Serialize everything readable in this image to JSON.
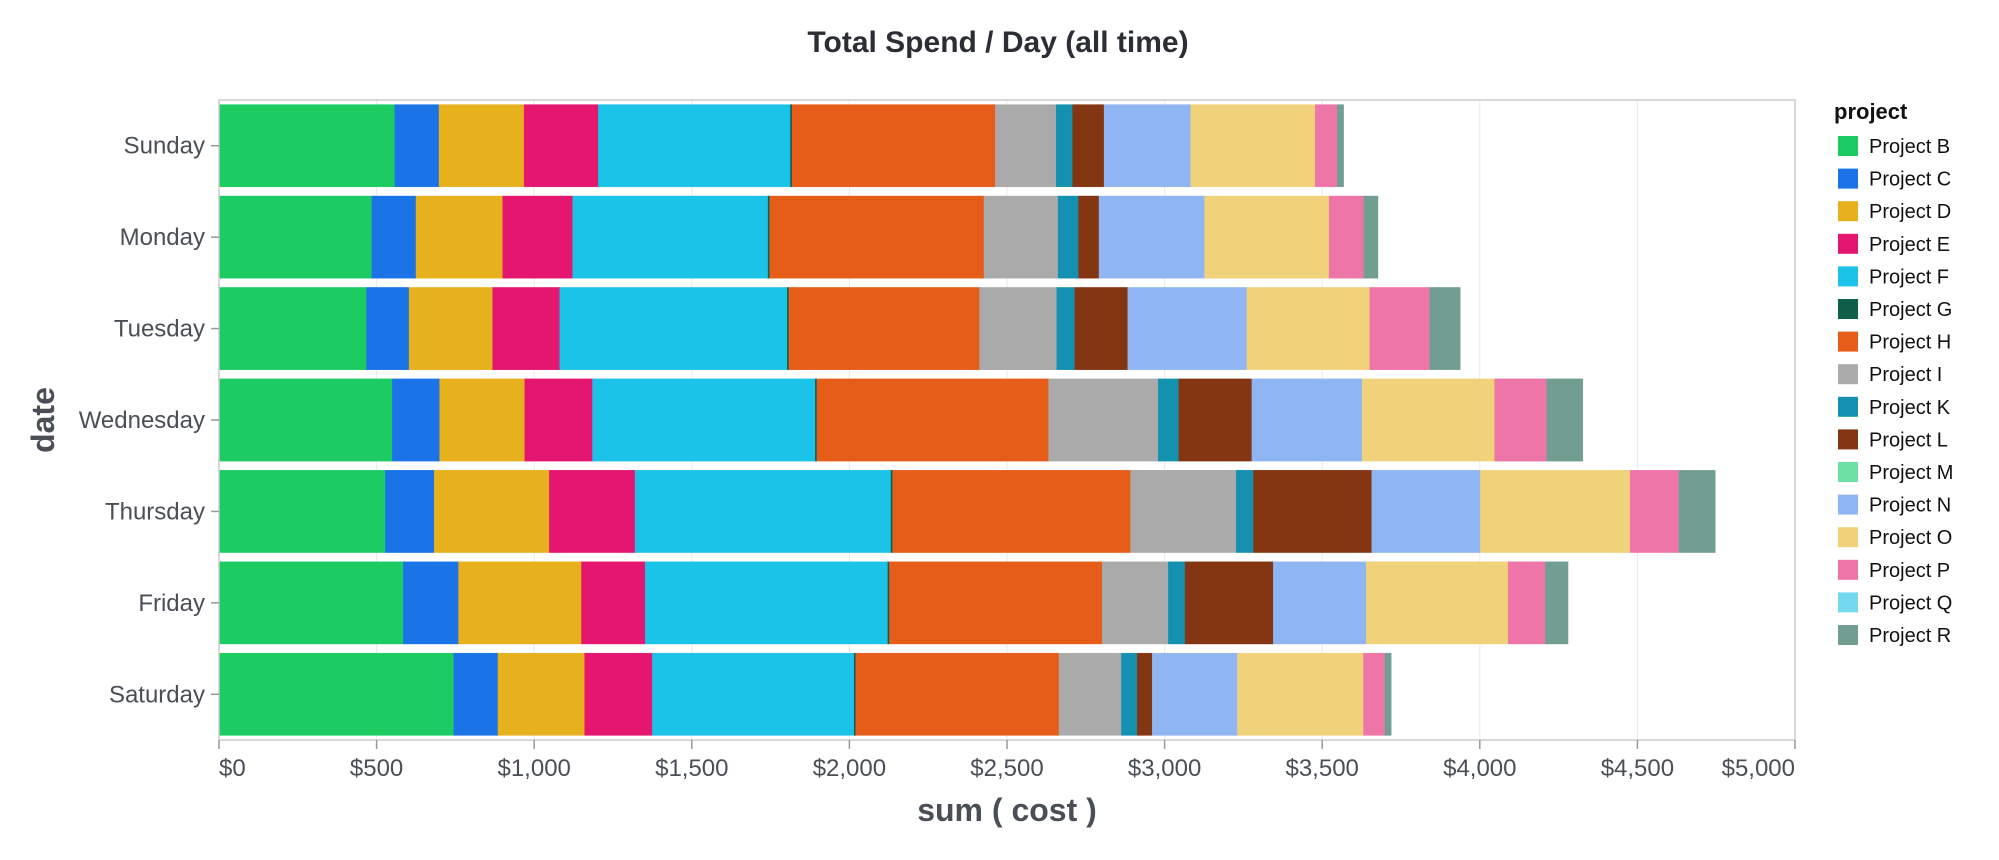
{
  "chart_data": {
    "type": "bar",
    "orientation": "horizontal",
    "stacked": true,
    "title": "Total Spend / Day (all time)",
    "xlabel": "sum ( cost )",
    "ylabel": "date",
    "xlim": [
      0,
      5000
    ],
    "x_ticks": [
      0,
      500,
      1000,
      1500,
      2000,
      2500,
      3000,
      3500,
      4000,
      4500,
      5000
    ],
    "x_tick_labels": [
      "$0",
      "$500",
      "$1,000",
      "$1,500",
      "$2,000",
      "$2,500",
      "$3,000",
      "$3,500",
      "$4,000",
      "$4,500",
      "$5,000"
    ],
    "grid": "vertical",
    "legend_title": "project",
    "legend_position": "right",
    "categories": [
      "Sunday",
      "Monday",
      "Tuesday",
      "Wednesday",
      "Thursday",
      "Friday",
      "Saturday"
    ],
    "series": [
      {
        "name": "Project B",
        "color": "#1ccc62",
        "values": [
          558,
          485,
          468,
          550,
          528,
          585,
          745
        ]
      },
      {
        "name": "Project C",
        "color": "#1a74e8",
        "values": [
          140,
          140,
          135,
          150,
          155,
          175,
          140
        ]
      },
      {
        "name": "Project D",
        "color": "#e6b11c",
        "values": [
          270,
          275,
          265,
          270,
          365,
          390,
          275
        ]
      },
      {
        "name": "Project E",
        "color": "#e5166f",
        "values": [
          235,
          222,
          213,
          215,
          272,
          202,
          215
        ]
      },
      {
        "name": "Project F",
        "color": "#1bc3e8",
        "values": [
          610,
          620,
          722,
          707,
          812,
          770,
          640
        ]
      },
      {
        "name": "Project G",
        "color": "#0f5e4a",
        "values": [
          5,
          5,
          5,
          5,
          5,
          5,
          5
        ]
      },
      {
        "name": "Project H",
        "color": "#e65d1a",
        "values": [
          645,
          680,
          605,
          735,
          755,
          675,
          645
        ]
      },
      {
        "name": "Project I",
        "color": "#aaaaaa",
        "values": [
          193,
          235,
          245,
          348,
          335,
          210,
          198
        ]
      },
      {
        "name": "Project K",
        "color": "#1490b0",
        "values": [
          52,
          65,
          57,
          65,
          55,
          53,
          50
        ]
      },
      {
        "name": "Project L",
        "color": "#843512",
        "values": [
          100,
          65,
          168,
          232,
          375,
          280,
          48
        ]
      },
      {
        "name": "Project M",
        "color": "#6ee0a3",
        "values": [
          0,
          0,
          0,
          0,
          0,
          0,
          0
        ]
      },
      {
        "name": "Project N",
        "color": "#8fb6f2",
        "values": [
          275,
          335,
          378,
          350,
          345,
          295,
          270
        ]
      },
      {
        "name": "Project O",
        "color": "#f0d27a",
        "values": [
          395,
          395,
          390,
          420,
          475,
          450,
          400
        ]
      },
      {
        "name": "Project P",
        "color": "#ee75a7",
        "values": [
          70,
          110,
          190,
          165,
          155,
          118,
          68
        ]
      },
      {
        "name": "Project Q",
        "color": "#74d9ee",
        "values": [
          0,
          0,
          0,
          0,
          0,
          0,
          0
        ]
      },
      {
        "name": "Project R",
        "color": "#729e92",
        "values": [
          20,
          45,
          97,
          115,
          115,
          72,
          20
        ]
      }
    ]
  }
}
